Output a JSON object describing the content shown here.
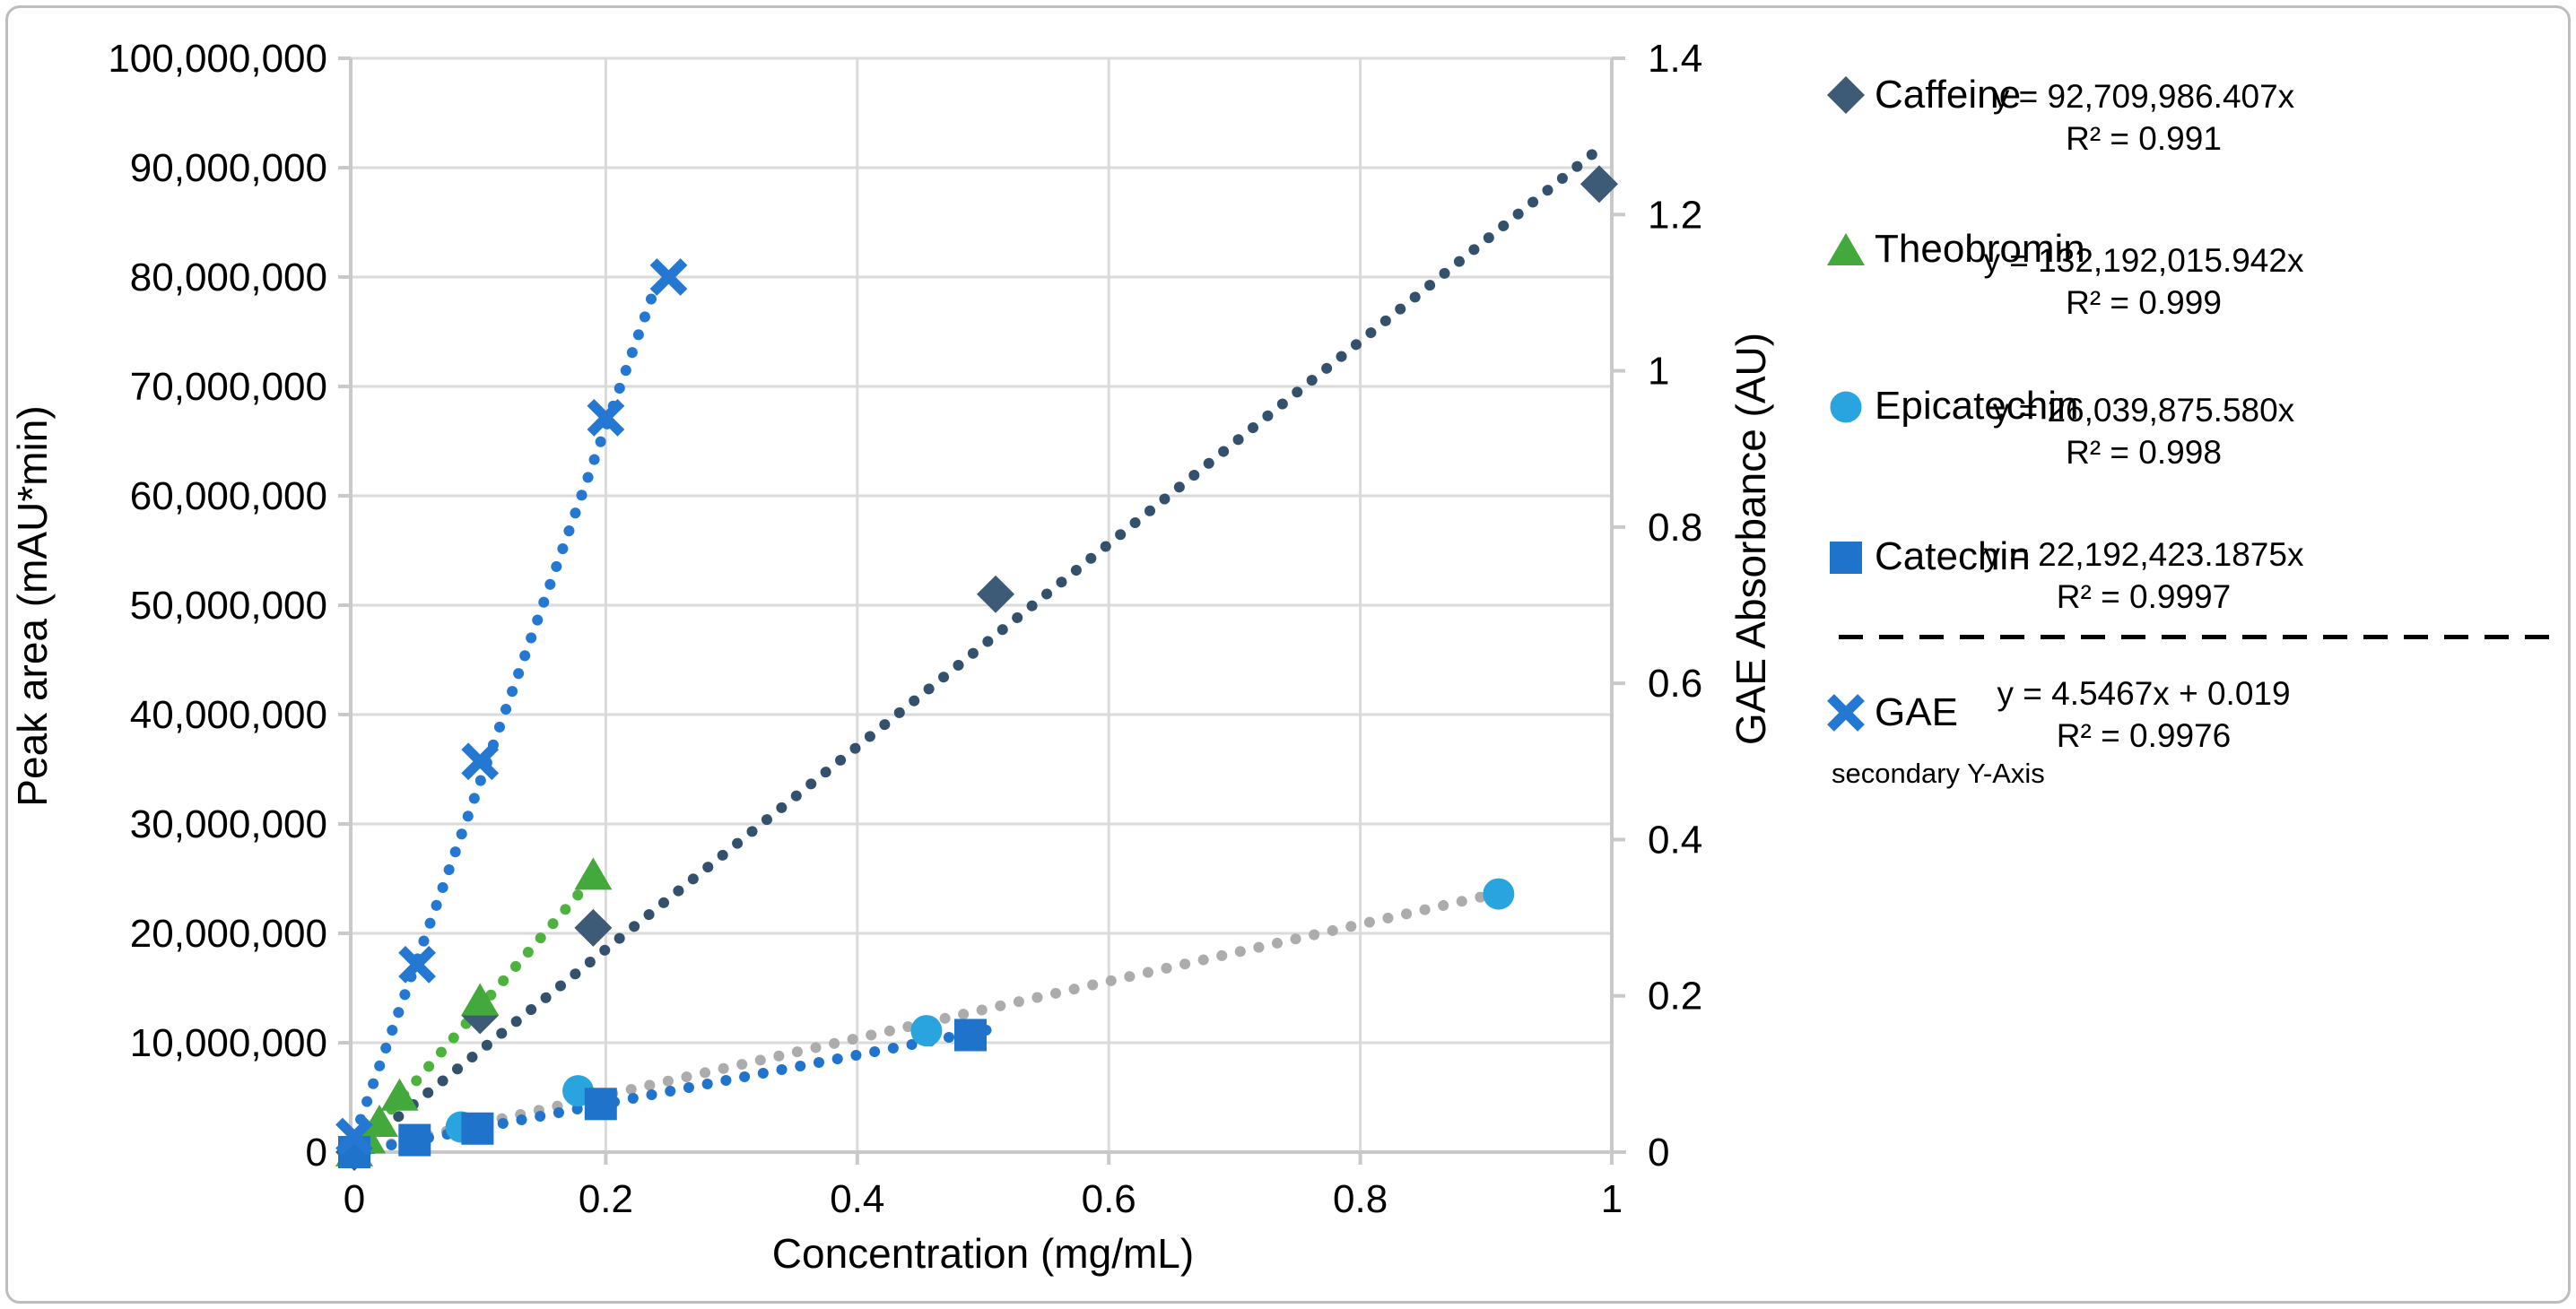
{
  "axis_titles": {
    "x": "Concentration (mg/mL)",
    "y1": "Peak area (mAU*min)",
    "y2": "GAE Absorbance (AU)"
  },
  "style": {
    "grid_color": "#DADADA",
    "axis_color": "#C9C9C9",
    "tick_text_color": "#000000",
    "divider_color": "#000000",
    "background": "#FFFFFF",
    "border_color": "#BDBDBD"
  },
  "chart_data": {
    "type": "scatter",
    "x_axis": {
      "label": "Concentration (mg/mL)",
      "range": [
        0,
        1
      ],
      "tick_values": [
        0,
        0.2,
        0.4,
        0.6,
        0.8,
        1
      ],
      "ticks": [
        "0",
        "0.2",
        "0.4",
        "0.6",
        "0.8",
        "1"
      ],
      "grid": false
    },
    "y_axis": {
      "label": "Peak area (mAU*min)",
      "range": [
        0,
        100000000
      ],
      "tick_values": [
        0,
        10000000,
        20000000,
        30000000,
        40000000,
        50000000,
        60000000,
        70000000,
        80000000,
        90000000,
        100000000
      ],
      "ticks": [
        "0",
        "10,000,000",
        "20,000,000",
        "30,000,000",
        "40,000,000",
        "50,000,000",
        "60,000,000",
        "70,000,000",
        "80,000,000",
        "90,000,000",
        "100,000,000"
      ],
      "grid": true
    },
    "y2_axis": {
      "label": "GAE Absorbance (AU)",
      "range": [
        0,
        1.4
      ],
      "tick_values": [
        0,
        0.2,
        0.4,
        0.6,
        0.8,
        1,
        1.2,
        1.4
      ],
      "ticks": [
        "0",
        "0.2",
        "0.4",
        "0.6",
        "0.8",
        "1",
        "1.2",
        "1.4"
      ],
      "grid": false
    },
    "legend_position": "right",
    "series": [
      {
        "name": "Caffeine",
        "marker": "diamond",
        "color": "#3D5A77",
        "line_color": "#33506C",
        "axis": "y1",
        "equation": "y = 92,709,986.407x",
        "r2": "R² = 0.991",
        "points": [
          [
            0,
            0
          ],
          [
            0.1,
            12500000
          ],
          [
            0.19,
            20500000
          ],
          [
            0.51,
            51000000
          ],
          [
            0.99,
            88500000
          ]
        ],
        "trend": [
          [
            0,
            0
          ],
          [
            0.995,
            92200000
          ]
        ]
      },
      {
        "name": "Theobromin",
        "marker": "triangle",
        "color": "#43A93C",
        "line_color": "#4DB33E",
        "axis": "y1",
        "equation": "y = 132,192,015.942x",
        "r2": "R² = 0.999",
        "points": [
          [
            0,
            0
          ],
          [
            0.01,
            1200000
          ],
          [
            0.02,
            2700000
          ],
          [
            0.036,
            5100000
          ],
          [
            0.1,
            13800000
          ],
          [
            0.19,
            25300000
          ]
        ],
        "trend": [
          [
            0,
            0
          ],
          [
            0.197,
            26040000
          ]
        ]
      },
      {
        "name": "Epicatechin",
        "marker": "circle",
        "color": "#29A4DE",
        "line_color": "#ACACAC",
        "axis": "y1",
        "equation": "y = 26,039,875.580x",
        "r2": "R² = 0.998",
        "points": [
          [
            0,
            0
          ],
          [
            0.085,
            2300000
          ],
          [
            0.178,
            5600000
          ],
          [
            0.455,
            11100000
          ],
          [
            0.91,
            23600000
          ]
        ],
        "trend": [
          [
            0,
            0
          ],
          [
            0.92,
            23950000
          ]
        ]
      },
      {
        "name": "Catechin",
        "marker": "square",
        "color": "#1F73CB",
        "line_color": "#2074CC",
        "axis": "y1",
        "equation": "y = 22,192,423.1875x",
        "r2": "R² = 0.9997",
        "points": [
          [
            0,
            0
          ],
          [
            0.048,
            1100000
          ],
          [
            0.098,
            2150000
          ],
          [
            0.196,
            4400000
          ],
          [
            0.49,
            10700000
          ]
        ],
        "trend": [
          [
            0,
            0
          ],
          [
            0.503,
            11160000
          ]
        ]
      },
      {
        "name": "GAE",
        "marker": "x",
        "color": "#2478D2",
        "line_color": "#2478D2",
        "axis": "y2",
        "note": "secondary Y-Axis",
        "equation": "y = 4.5467x + 0.019",
        "r2": "R² = 0.9976",
        "points": [
          [
            0,
            0.02
          ],
          [
            0.05,
            0.24
          ],
          [
            0.1,
            0.5
          ],
          [
            0.2,
            0.94
          ],
          [
            0.25,
            1.12
          ]
        ],
        "trend": [
          [
            0,
            0.019
          ],
          [
            0.237,
            1.096
          ]
        ]
      }
    ]
  }
}
